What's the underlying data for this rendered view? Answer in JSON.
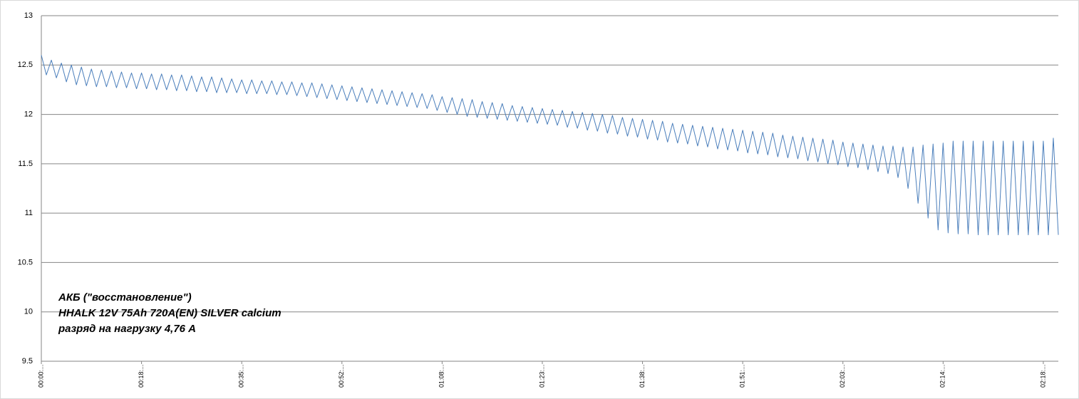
{
  "chart_data": {
    "type": "line",
    "annotations": [
      "АКБ (\"восстановление\")",
      "HHALK 12V 75Ah 720A(EN) SILVER calcium",
      "разряд на нагрузку 4,76 А"
    ],
    "categories": [
      "00:00:...",
      null,
      null,
      null,
      null,
      null,
      null,
      null,
      null,
      null,
      null,
      null,
      null,
      null,
      null,
      null,
      null,
      null,
      null,
      null,
      "00:18:...",
      null,
      null,
      null,
      null,
      null,
      null,
      null,
      null,
      null,
      null,
      null,
      null,
      null,
      null,
      null,
      null,
      null,
      null,
      null,
      "00:35:...",
      null,
      null,
      null,
      null,
      null,
      null,
      null,
      null,
      null,
      null,
      null,
      null,
      null,
      null,
      null,
      null,
      null,
      null,
      null,
      "00:52:...",
      null,
      null,
      null,
      null,
      null,
      null,
      null,
      null,
      null,
      null,
      null,
      null,
      null,
      null,
      null,
      null,
      null,
      null,
      null,
      "01:08:...",
      null,
      null,
      null,
      null,
      null,
      null,
      null,
      null,
      null,
      null,
      null,
      null,
      null,
      null,
      null,
      null,
      null,
      null,
      null,
      "01:23:...",
      null,
      null,
      null,
      null,
      null,
      null,
      null,
      null,
      null,
      null,
      null,
      null,
      null,
      null,
      null,
      null,
      null,
      null,
      null,
      "01:38:...",
      null,
      null,
      null,
      null,
      null,
      null,
      null,
      null,
      null,
      null,
      null,
      null,
      null,
      null,
      null,
      null,
      null,
      null,
      null,
      "01:51:...",
      null,
      null,
      null,
      null,
      null,
      null,
      null,
      null,
      null,
      null,
      null,
      null,
      null,
      null,
      null,
      null,
      null,
      null,
      null,
      "02:03:...",
      null,
      null,
      null,
      null,
      null,
      null,
      null,
      null,
      null,
      null,
      null,
      null,
      null,
      null,
      null,
      null,
      null,
      null,
      null,
      "02:14:...",
      null,
      null,
      null,
      null,
      null,
      null,
      null,
      null,
      null,
      null,
      null,
      null,
      null,
      null,
      null,
      null,
      null,
      null,
      null,
      "02:18:...",
      null,
      null,
      null
    ],
    "series": [
      {
        "color": "#4a7ebb",
        "values": [
          12.6,
          12.4,
          12.55,
          12.37,
          12.52,
          12.33,
          12.5,
          12.3,
          12.48,
          12.29,
          12.46,
          12.28,
          12.45,
          12.28,
          12.44,
          12.27,
          12.43,
          12.27,
          12.42,
          12.26,
          12.42,
          12.26,
          12.41,
          12.25,
          12.41,
          12.25,
          12.4,
          12.24,
          12.4,
          12.24,
          12.39,
          12.23,
          12.38,
          12.23,
          12.38,
          12.22,
          12.37,
          12.22,
          12.36,
          12.22,
          12.35,
          12.21,
          12.35,
          12.21,
          12.34,
          12.21,
          12.34,
          12.2,
          12.33,
          12.2,
          12.33,
          12.19,
          12.32,
          12.18,
          12.32,
          12.17,
          12.31,
          12.16,
          12.3,
          12.15,
          12.29,
          12.14,
          12.28,
          12.13,
          12.27,
          12.12,
          12.26,
          12.11,
          12.25,
          12.1,
          12.24,
          12.09,
          12.23,
          12.08,
          12.22,
          12.07,
          12.21,
          12.06,
          12.2,
          12.04,
          12.18,
          12.02,
          12.17,
          12.0,
          12.16,
          11.98,
          12.15,
          11.97,
          12.13,
          11.96,
          12.12,
          11.95,
          12.11,
          11.94,
          12.09,
          11.93,
          12.08,
          11.92,
          12.07,
          11.91,
          12.06,
          11.9,
          12.05,
          11.89,
          12.04,
          11.87,
          12.03,
          11.86,
          12.02,
          11.84,
          12.01,
          11.83,
          12.0,
          11.81,
          11.99,
          11.8,
          11.97,
          11.78,
          11.96,
          11.77,
          11.95,
          11.75,
          11.94,
          11.74,
          11.93,
          11.72,
          11.91,
          11.71,
          11.9,
          11.7,
          11.89,
          11.68,
          11.88,
          11.67,
          11.87,
          11.65,
          11.86,
          11.64,
          11.85,
          11.63,
          11.84,
          11.61,
          11.83,
          11.6,
          11.82,
          11.59,
          11.81,
          11.57,
          11.79,
          11.56,
          11.78,
          11.55,
          11.77,
          11.53,
          11.76,
          11.52,
          11.75,
          11.5,
          11.74,
          11.49,
          11.72,
          11.47,
          11.71,
          11.46,
          11.7,
          11.44,
          11.69,
          11.42,
          11.68,
          11.4,
          11.68,
          11.36,
          11.67,
          11.25,
          11.67,
          11.1,
          11.69,
          10.95,
          11.7,
          10.83,
          11.71,
          10.8,
          11.73,
          10.79,
          11.73,
          10.79,
          11.73,
          10.78,
          11.73,
          10.78,
          11.73,
          10.78,
          11.73,
          10.78,
          11.73,
          10.78,
          11.73,
          10.78,
          11.73,
          10.78,
          11.73,
          10.78,
          11.76,
          10.78
        ]
      }
    ],
    "ylim": [
      9.5,
      13
    ],
    "yticks": [
      9.5,
      10,
      10.5,
      11,
      11.5,
      12,
      12.5,
      13
    ],
    "grid": true
  }
}
